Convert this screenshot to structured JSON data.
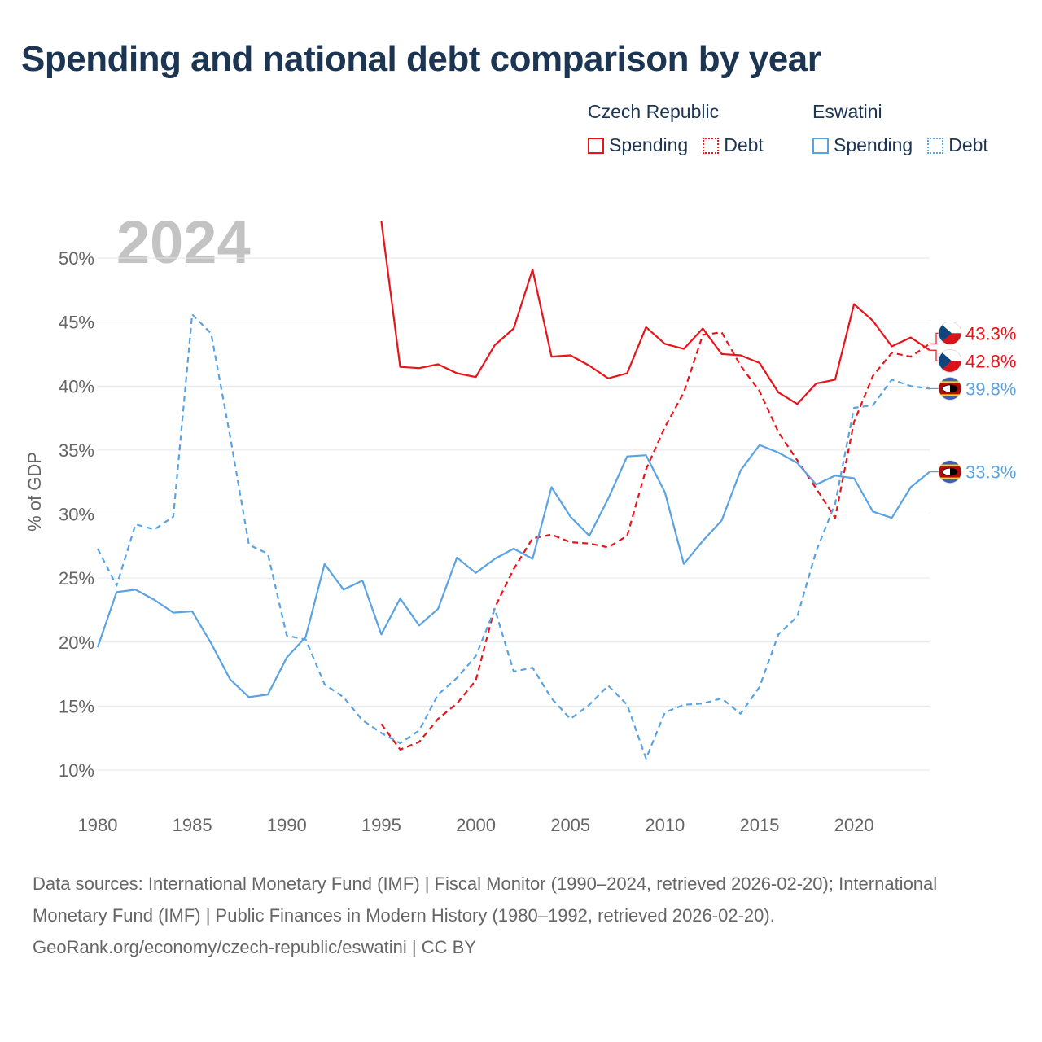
{
  "title": "Spending and national debt comparison by year",
  "legend": {
    "groups": [
      {
        "country": "Czech Republic",
        "items": [
          "Spending",
          "Debt"
        ]
      },
      {
        "country": "Eswatini",
        "items": [
          "Spending",
          "Debt"
        ]
      }
    ]
  },
  "colors": {
    "czech": "#e8141a",
    "eswatini": "#5aa3e3",
    "grid": "#e6e6e6",
    "axis_text": "#666666",
    "year_watermark": "#c3c3c3"
  },
  "chart_data": {
    "type": "line",
    "year_watermark": "2024",
    "ylabel": "% of GDP",
    "xlim": [
      1980,
      2024
    ],
    "ylim": [
      10,
      50
    ],
    "x_ticks": [
      1980,
      1985,
      1990,
      1995,
      2000,
      2005,
      2010,
      2015,
      2020
    ],
    "x_tick_labels": [
      "1980",
      "1985",
      "1990",
      "1995",
      "2000",
      "2005",
      "2010",
      "2015",
      "2020"
    ],
    "y_ticks": [
      10,
      15,
      20,
      25,
      30,
      35,
      40,
      45,
      50
    ],
    "y_tick_labels": [
      "10%",
      "15%",
      "20%",
      "25%",
      "30%",
      "35%",
      "40%",
      "45%",
      "50%"
    ],
    "series": [
      {
        "name": "Czech Republic Spending",
        "country": "Czech Republic",
        "style": "solid",
        "color": "#e8141a",
        "x": [
          1995,
          1996,
          1997,
          1998,
          1999,
          2000,
          2001,
          2002,
          2003,
          2004,
          2005,
          2006,
          2007,
          2008,
          2009,
          2010,
          2011,
          2012,
          2013,
          2014,
          2015,
          2016,
          2017,
          2018,
          2019,
          2020,
          2021,
          2022,
          2023,
          2024
        ],
        "values": [
          52.9,
          41.5,
          41.4,
          41.7,
          41.0,
          40.7,
          43.2,
          44.5,
          49.1,
          42.3,
          42.4,
          41.6,
          40.6,
          41.0,
          44.6,
          43.3,
          42.9,
          44.5,
          42.5,
          42.4,
          41.8,
          39.5,
          38.6,
          40.2,
          40.5,
          46.4,
          45.1,
          43.1,
          43.8,
          42.8
        ],
        "end_label": "42.8%"
      },
      {
        "name": "Czech Republic Debt",
        "country": "Czech Republic",
        "style": "dashed",
        "color": "#e8141a",
        "x": [
          1995,
          1996,
          1997,
          1998,
          1999,
          2000,
          2001,
          2002,
          2003,
          2004,
          2005,
          2006,
          2007,
          2008,
          2009,
          2010,
          2011,
          2012,
          2013,
          2014,
          2015,
          2016,
          2017,
          2018,
          2019,
          2020,
          2021,
          2022,
          2023,
          2024
        ],
        "values": [
          13.6,
          11.6,
          12.2,
          14.0,
          15.2,
          17.0,
          22.7,
          25.7,
          28.1,
          28.4,
          27.8,
          27.7,
          27.4,
          28.3,
          33.5,
          36.8,
          39.5,
          44.0,
          44.2,
          41.6,
          39.6,
          36.4,
          34.2,
          32.0,
          29.7,
          37.2,
          40.8,
          42.6,
          42.3,
          43.3
        ],
        "end_label": "43.3%"
      },
      {
        "name": "Eswatini Spending",
        "country": "Eswatini",
        "style": "solid",
        "color": "#5aa3e3",
        "x": [
          1980,
          1981,
          1982,
          1983,
          1984,
          1985,
          1986,
          1987,
          1988,
          1989,
          1990,
          1991,
          1992,
          1993,
          1994,
          1995,
          1996,
          1997,
          1998,
          1999,
          2000,
          2001,
          2002,
          2003,
          2004,
          2005,
          2006,
          2007,
          2008,
          2009,
          2010,
          2011,
          2012,
          2013,
          2014,
          2015,
          2016,
          2017,
          2018,
          2019,
          2020,
          2021,
          2022,
          2023,
          2024
        ],
        "values": [
          19.6,
          23.9,
          24.1,
          23.3,
          22.3,
          22.4,
          19.9,
          17.1,
          15.7,
          15.9,
          18.8,
          20.4,
          26.1,
          24.1,
          24.8,
          20.6,
          23.4,
          21.3,
          22.6,
          26.6,
          25.4,
          26.5,
          27.3,
          26.5,
          32.1,
          29.8,
          28.3,
          31.2,
          34.5,
          34.6,
          31.7,
          26.1,
          27.9,
          29.5,
          33.4,
          35.4,
          34.8,
          34.0,
          32.3,
          33.0,
          32.8,
          30.2,
          29.7,
          32.1,
          33.3
        ],
        "end_label": "33.3%"
      },
      {
        "name": "Eswatini Debt",
        "country": "Eswatini",
        "style": "dashed",
        "color": "#5aa3e3",
        "x": [
          1980,
          1981,
          1982,
          1983,
          1984,
          1985,
          1986,
          1987,
          1988,
          1989,
          1990,
          1991,
          1992,
          1993,
          1994,
          1995,
          1996,
          1997,
          1998,
          1999,
          2000,
          2001,
          2002,
          2003,
          2004,
          2005,
          2006,
          2007,
          2008,
          2009,
          2010,
          2011,
          2012,
          2013,
          2014,
          2015,
          2016,
          2017,
          2018,
          2019,
          2020,
          2021,
          2022,
          2023,
          2024
        ],
        "values": [
          27.3,
          24.4,
          29.2,
          28.8,
          29.8,
          45.6,
          44.1,
          36.1,
          27.6,
          26.9,
          20.5,
          20.2,
          16.7,
          15.7,
          13.9,
          12.9,
          12.1,
          13.1,
          15.9,
          17.2,
          18.9,
          22.6,
          17.7,
          18.0,
          15.6,
          14.0,
          15.1,
          16.6,
          15.1,
          10.9,
          14.5,
          15.1,
          15.2,
          15.6,
          14.4,
          16.5,
          20.6,
          22.0,
          27.1,
          30.8,
          38.3,
          38.5,
          40.5,
          40.0,
          39.8
        ],
        "end_label": "39.8%"
      }
    ]
  },
  "footer": {
    "sources": "Data sources: International Monetary Fund (IMF) | Fiscal Monitor (1990–2024, retrieved 2026-02-20); International Monetary Fund (IMF) | Public Finances in Modern History (1980–1992, retrieved 2026-02-20).",
    "credit": "GeoRank.org/economy/czech-republic/eswatini | CC BY"
  }
}
